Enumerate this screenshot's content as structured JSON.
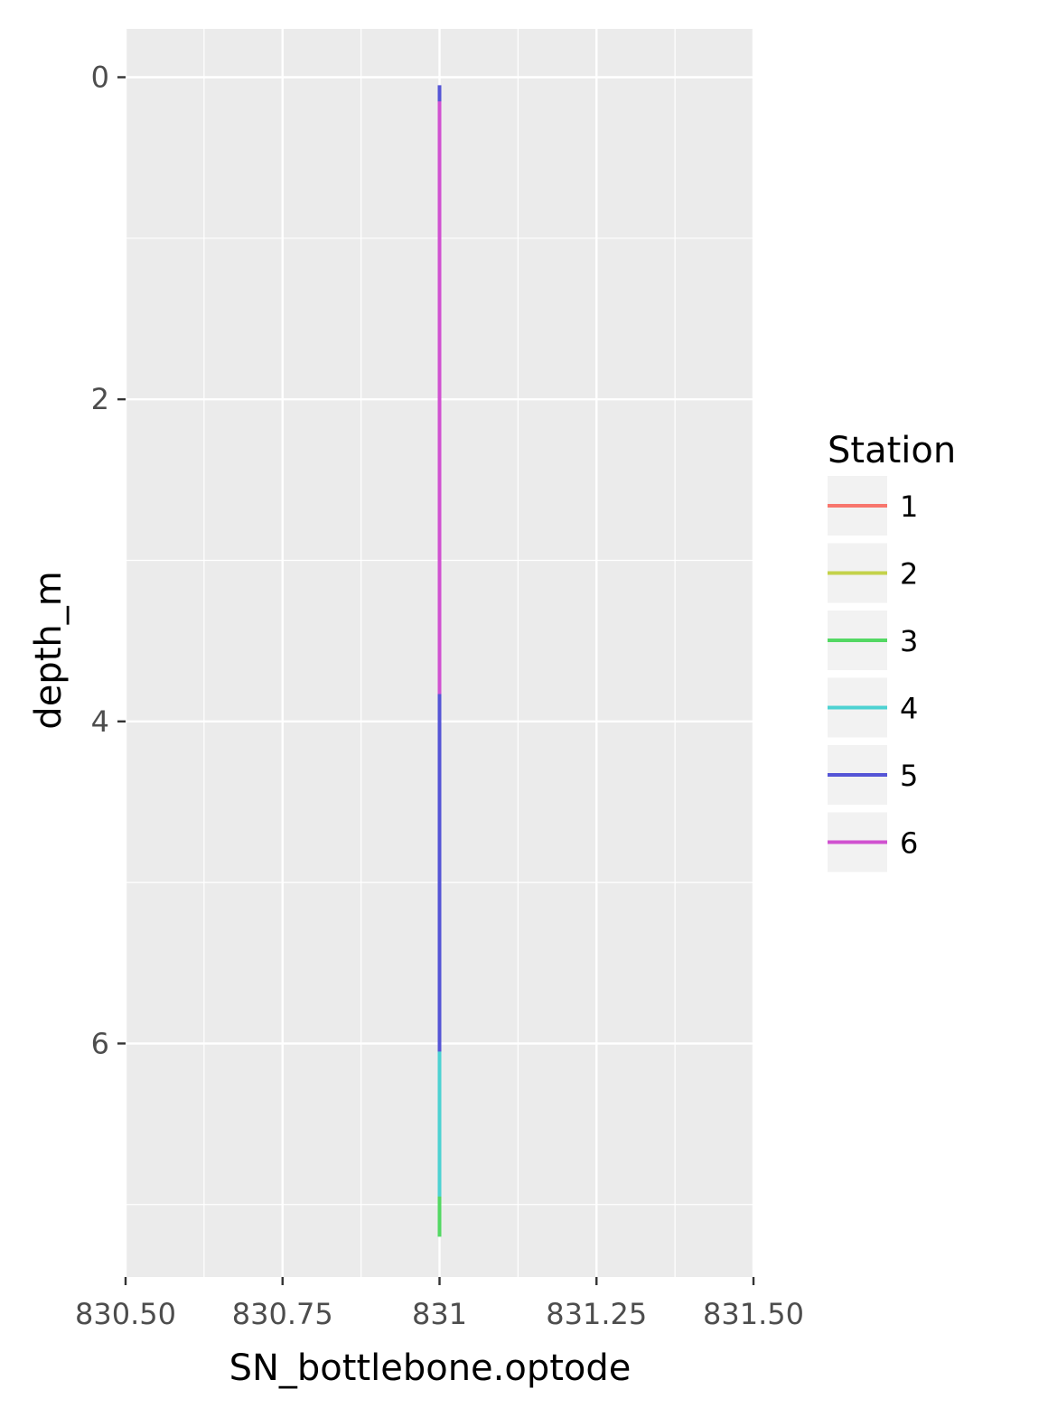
{
  "chart_data": {
    "type": "line",
    "xlabel": "SN_bottlebone.optode",
    "ylabel": "depth_m",
    "xlim": [
      830.5,
      831.5
    ],
    "ylim": [
      7.45,
      -0.3
    ],
    "y_reversed": true,
    "x_ticks": [
      830.5,
      830.75,
      831,
      831.25,
      831.5
    ],
    "x_tick_labels": [
      "830.50",
      "830.75",
      "831",
      "831.25",
      "831.50"
    ],
    "y_ticks": [
      0,
      2,
      4,
      6
    ],
    "y_tick_labels": [
      "0",
      "2",
      "4",
      "6"
    ],
    "grid": true,
    "legend": {
      "title": "Station",
      "placement": "right"
    },
    "series": [
      {
        "name": "1",
        "color": "#F8766D",
        "x": [
          831,
          831
        ],
        "y": [
          0.2,
          7.0
        ]
      },
      {
        "name": "2",
        "color": "#C4D24A",
        "x": [
          831,
          831
        ],
        "y": [
          0.2,
          7.0
        ]
      },
      {
        "name": "3",
        "color": "#53D863",
        "x": [
          831,
          831
        ],
        "y": [
          0.1,
          7.2
        ]
      },
      {
        "name": "4",
        "color": "#4DD2D2",
        "x": [
          831,
          831
        ],
        "y": [
          0.1,
          6.95
        ]
      },
      {
        "name": "5",
        "color": "#5555D6",
        "x": [
          831,
          831
        ],
        "y": [
          0.05,
          6.05
        ]
      },
      {
        "name": "6",
        "color": "#D052D0",
        "x": [
          831,
          831
        ],
        "y": [
          0.15,
          3.83
        ]
      }
    ]
  }
}
